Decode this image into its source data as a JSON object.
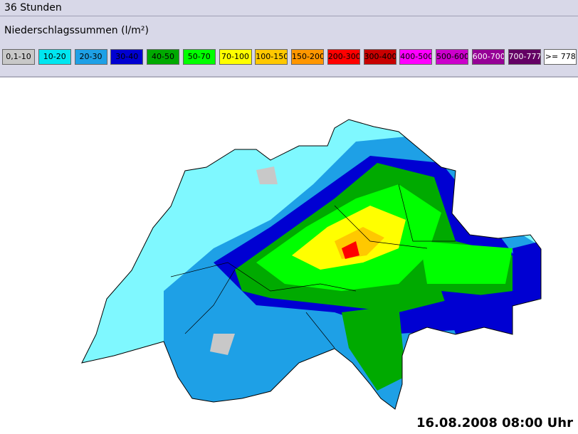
{
  "header": {
    "title": "36 Stunden"
  },
  "legend": {
    "title": "Niederschlagssummen (l/m²)",
    "items": [
      {
        "label": "0,1-10",
        "color": "#c8c8c8",
        "text_color": "#000000"
      },
      {
        "label": "10-20",
        "color": "#00e6f0",
        "text_color": "#000000"
      },
      {
        "label": "20-30",
        "color": "#1ea0e6",
        "text_color": "#000000"
      },
      {
        "label": "30-40",
        "color": "#0000d2",
        "text_color": "#000000"
      },
      {
        "label": "40-50",
        "color": "#00aa00",
        "text_color": "#000000"
      },
      {
        "label": "50-70",
        "color": "#00ff00",
        "text_color": "#000000"
      },
      {
        "label": "70-100",
        "color": "#ffff00",
        "text_color": "#000000"
      },
      {
        "label": "100-150",
        "color": "#ffc800",
        "text_color": "#000000"
      },
      {
        "label": "150-200",
        "color": "#ff9600",
        "text_color": "#000000"
      },
      {
        "label": "200-300",
        "color": "#ff0000",
        "text_color": "#000000"
      },
      {
        "label": "300-400",
        "color": "#c80000",
        "text_color": "#000000"
      },
      {
        "label": "400-500",
        "color": "#ff00ff",
        "text_color": "#000000"
      },
      {
        "label": "500-600",
        "color": "#cc00cc",
        "text_color": "#000000"
      },
      {
        "label": "600-700",
        "color": "#960096",
        "text_color": "#ffffff"
      },
      {
        "label": "700-777",
        "color": "#640064",
        "text_color": "#ffffff"
      },
      {
        "label": ">= 778",
        "color": "#ffffff",
        "text_color": "#000000"
      }
    ]
  },
  "map": {
    "timestamp": "16.08.2008 08:00 Uhr"
  }
}
